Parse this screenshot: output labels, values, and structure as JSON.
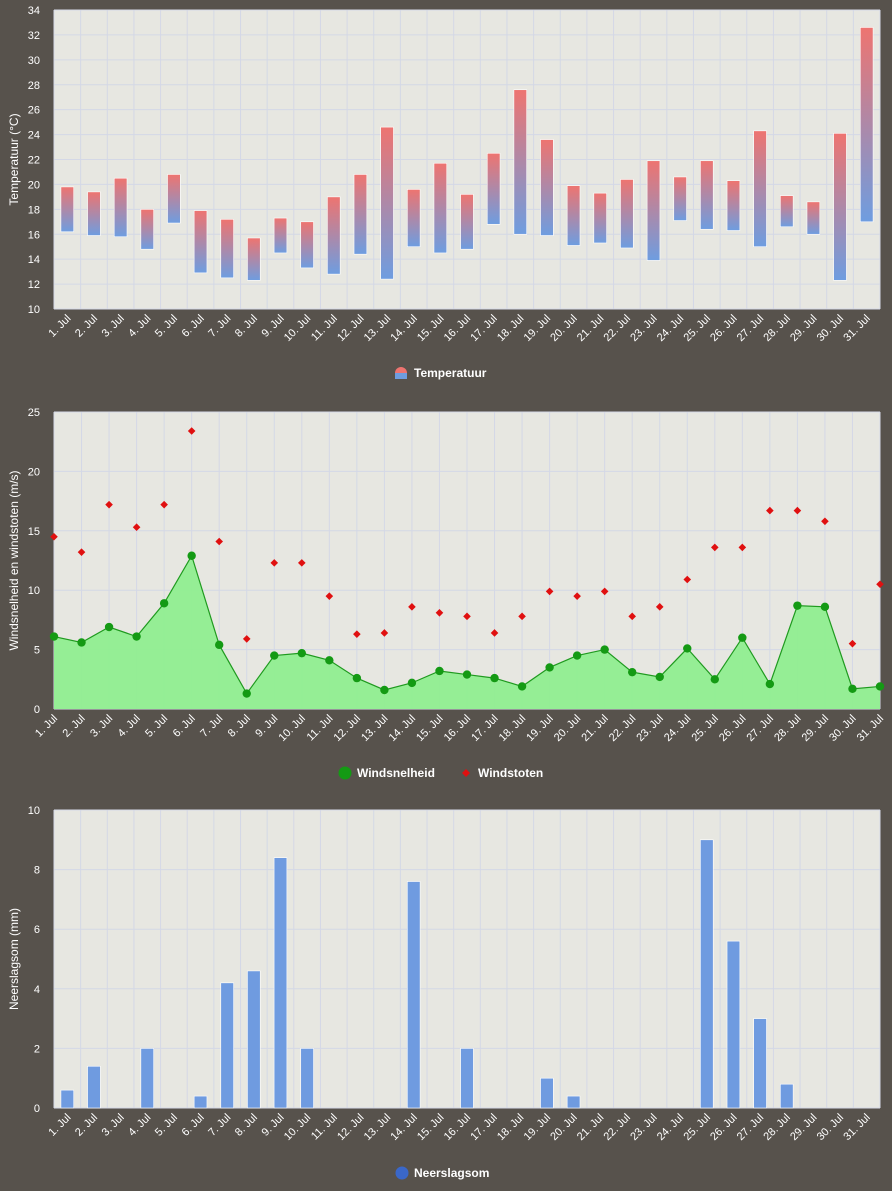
{
  "days": [
    "1. Jul",
    "2. Jul",
    "3. Jul",
    "4. Jul",
    "5. Jul",
    "6. Jul",
    "7. Jul",
    "8. Jul",
    "9. Jul",
    "10. Jul",
    "11. Jul",
    "12. Jul",
    "13. Jul",
    "14. Jul",
    "15. Jul",
    "16. Jul",
    "17. Jul",
    "18. Jul",
    "19. Jul",
    "20. Jul",
    "21. Jul",
    "22. Jul",
    "23. Jul",
    "24. Jul",
    "25. Jul",
    "26. Jul",
    "27. Jul",
    "28. Jul",
    "29. Jul",
    "30. Jul",
    "31. Jul"
  ],
  "colors": {
    "background": "#57524c",
    "plot_bg": "#e7e7e1",
    "grid": "#d4d8e6",
    "temp_high": "#ee7470",
    "temp_low": "#6e9de0",
    "wind_line": "#1f9a1f",
    "wind_fill": "#90ee90",
    "wind_point": "#149a14",
    "gust": "#e01010",
    "precip": "#6f9be0"
  },
  "chart_data": [
    {
      "type": "bar",
      "subtype": "range",
      "ylabel": "Temperatuur (°C)",
      "ylim": [
        10,
        34
      ],
      "yticks": [
        10,
        12,
        14,
        16,
        18,
        20,
        22,
        24,
        26,
        28,
        30,
        32,
        34
      ],
      "grid": true,
      "legend": "bottom-center",
      "series": [
        {
          "name": "Temperatuur",
          "low": [
            16.2,
            15.9,
            15.8,
            14.8,
            16.9,
            12.9,
            12.5,
            12.3,
            14.5,
            13.3,
            12.8,
            14.4,
            12.4,
            15.0,
            14.5,
            14.8,
            16.8,
            16.0,
            15.9,
            15.1,
            15.3,
            14.9,
            13.9,
            17.1,
            16.4,
            16.3,
            15.0,
            16.6,
            16.0,
            12.3,
            17.0
          ],
          "high": [
            19.8,
            19.4,
            20.5,
            18.0,
            20.8,
            17.9,
            17.2,
            15.7,
            17.3,
            17.0,
            19.0,
            20.8,
            24.6,
            19.6,
            21.7,
            19.2,
            22.5,
            27.6,
            23.6,
            19.9,
            19.3,
            20.4,
            21.9,
            20.6,
            21.9,
            20.3,
            24.3,
            19.1,
            18.6,
            24.1,
            32.6
          ]
        }
      ]
    },
    {
      "type": "area",
      "ylabel": "Windsnelheid en windstoten (m/s)",
      "ylim": [
        0,
        25
      ],
      "yticks": [
        0,
        5,
        10,
        15,
        20,
        25
      ],
      "grid": true,
      "legend": "bottom-center",
      "series": [
        {
          "name": "Windsnelheid",
          "type": "area",
          "values": [
            6.1,
            5.6,
            6.9,
            6.1,
            8.9,
            12.9,
            5.4,
            1.3,
            4.5,
            4.7,
            4.1,
            2.6,
            1.6,
            2.2,
            3.2,
            2.9,
            2.6,
            1.9,
            3.5,
            4.5,
            5.0,
            3.1,
            2.7,
            5.1,
            2.5,
            6.0,
            2.1,
            8.7,
            8.6,
            1.7,
            1.9
          ]
        },
        {
          "name": "Windstoten",
          "type": "scatter",
          "values": [
            14.5,
            13.2,
            17.2,
            15.3,
            17.2,
            23.4,
            14.1,
            5.9,
            12.3,
            12.3,
            9.5,
            6.3,
            6.4,
            8.6,
            8.1,
            7.8,
            6.4,
            7.8,
            9.9,
            9.5,
            9.9,
            7.8,
            8.6,
            10.9,
            13.6,
            13.6,
            16.7,
            16.7,
            15.8,
            5.5,
            10.5
          ]
        }
      ]
    },
    {
      "type": "bar",
      "ylabel": "Neerslagsom (mm)",
      "ylim": [
        0,
        10
      ],
      "yticks": [
        0,
        2,
        4,
        6,
        8,
        10
      ],
      "grid": true,
      "legend": "bottom-center",
      "series": [
        {
          "name": "Neerslagsom",
          "values": [
            0.6,
            1.4,
            0,
            2.0,
            0,
            0.4,
            4.2,
            4.6,
            8.4,
            2.0,
            0,
            0,
            0,
            7.6,
            0,
            2.0,
            0,
            0,
            1.0,
            0.4,
            0,
            0,
            0,
            0,
            9.0,
            5.6,
            3.0,
            0.8,
            0,
            0,
            0
          ]
        }
      ]
    }
  ]
}
